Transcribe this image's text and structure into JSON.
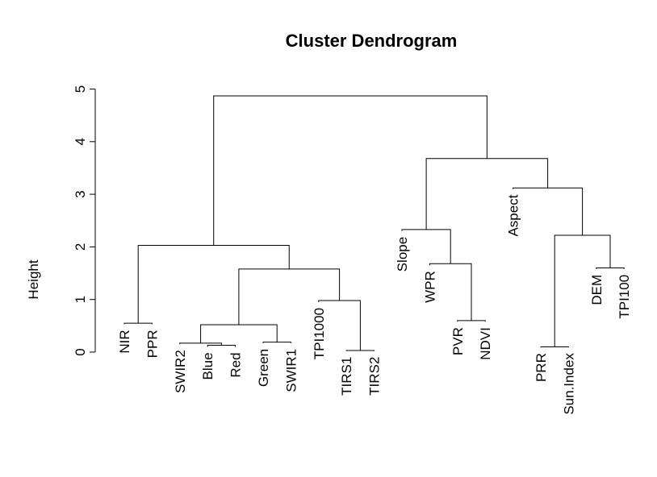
{
  "chart_data": {
    "type": "dendrogram",
    "title": "Cluster Dendrogram",
    "ylabel": "Height",
    "ylim": [
      0,
      5
    ],
    "yticks": [
      0,
      1,
      2,
      3,
      4,
      5
    ],
    "leaves": [
      {
        "label": "NIR",
        "height": 0.53
      },
      {
        "label": "PPR",
        "height": 0.53
      },
      {
        "label": "SWIR2",
        "height": 0.15
      },
      {
        "label": "Blue",
        "height": 0.1
      },
      {
        "label": "Red",
        "height": 0.1
      },
      {
        "label": "Green",
        "height": 0.17
      },
      {
        "label": "SWIR1",
        "height": 0.17
      },
      {
        "label": "TPI1000",
        "height": 0.95
      },
      {
        "label": "TIRS1",
        "height": 0.02
      },
      {
        "label": "TIRS2",
        "height": 0.02
      },
      {
        "label": "Slope",
        "height": 2.3
      },
      {
        "label": "WPR",
        "height": 1.65
      },
      {
        "label": "PVR",
        "height": 0.58
      },
      {
        "label": "NDVI",
        "height": 0.58
      },
      {
        "label": "Aspect",
        "height": 3.1
      },
      {
        "label": "PRR",
        "height": 0.09
      },
      {
        "label": "Sun.Index",
        "height": 0.09
      },
      {
        "label": "DEM",
        "height": 1.58
      },
      {
        "label": "TPI100",
        "height": 1.58
      }
    ],
    "merges": [
      [
        1,
        2,
        0.55
      ],
      [
        4,
        5,
        0.13
      ],
      [
        3,
        -2,
        0.17
      ],
      [
        6,
        7,
        0.19
      ],
      [
        -3,
        -4,
        0.52
      ],
      [
        9,
        10,
        0.03
      ],
      [
        8,
        -6,
        0.98
      ],
      [
        -5,
        -7,
        1.58
      ],
      [
        -1,
        -8,
        2.03
      ],
      [
        13,
        14,
        0.6
      ],
      [
        12,
        -10,
        1.68
      ],
      [
        11,
        -11,
        2.33
      ],
      [
        16,
        17,
        0.1
      ],
      [
        18,
        19,
        1.6
      ],
      [
        -13,
        -14,
        2.22
      ],
      [
        15,
        -15,
        3.12
      ],
      [
        -12,
        -16,
        3.68
      ],
      [
        -9,
        -17,
        4.87
      ]
    ]
  }
}
